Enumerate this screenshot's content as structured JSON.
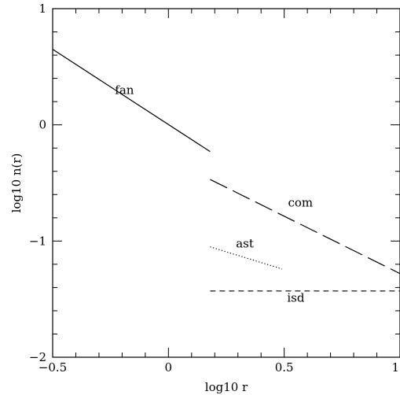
{
  "chart_data": {
    "type": "line",
    "title": "",
    "xlabel": "log10 r",
    "ylabel": "log10 n(r)",
    "xlim": [
      -0.5,
      1.0
    ],
    "ylim": [
      -2,
      1
    ],
    "x_ticks": [
      {
        "value": -0.5,
        "label": "−0.5"
      },
      {
        "value": 0,
        "label": "0"
      },
      {
        "value": 0.5,
        "label": "0.5"
      },
      {
        "value": 1.0,
        "label": "1"
      }
    ],
    "y_ticks": [
      {
        "value": 1,
        "label": "1"
      },
      {
        "value": 0,
        "label": "0"
      },
      {
        "value": -1,
        "label": "−1"
      },
      {
        "value": -2,
        "label": "−2"
      }
    ],
    "x_minor_step": 0.1,
    "y_minor_step": 0.2,
    "grid": false,
    "legend": "none",
    "series": [
      {
        "name": "fan",
        "style": "solid",
        "x": [
          -0.5,
          0.18
        ],
        "y": [
          0.65,
          -0.23
        ],
        "label_at": [
          -0.19,
          0.3
        ]
      },
      {
        "name": "com",
        "style": "long-dash",
        "x": [
          0.18,
          1.0
        ],
        "y": [
          -0.47,
          -1.28
        ],
        "label_at": [
          0.57,
          -0.67
        ]
      },
      {
        "name": "ast",
        "style": "dotted",
        "x": [
          0.18,
          0.49
        ],
        "y": [
          -1.05,
          -1.24
        ],
        "label_at": [
          0.33,
          -1.02
        ]
      },
      {
        "name": "isd",
        "style": "short-dash",
        "x": [
          0.18,
          1.0
        ],
        "y": [
          -1.43,
          -1.43
        ],
        "label_at": [
          0.55,
          -1.49
        ]
      }
    ]
  }
}
